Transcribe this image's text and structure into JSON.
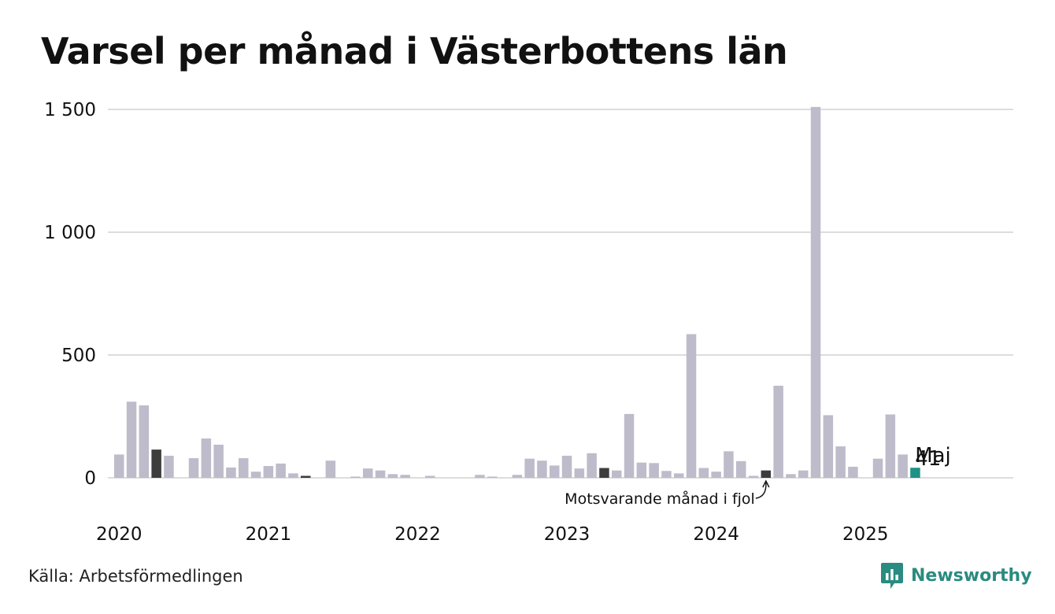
{
  "title": "Varsel per månad i Västerbottens län",
  "source": "Källa: Arbetsförmedlingen",
  "brand": "Newsworthy",
  "colors": {
    "bar": "#bebbca",
    "same_month_last_year": "#3d3d3d",
    "latest": "#1d9285",
    "grid": "#dddddd",
    "brand": "#2a8b80"
  },
  "chart_data": {
    "type": "bar",
    "title": "Varsel per månad i Västerbottens län",
    "ylim": [
      0,
      1500
    ],
    "yticks": [
      0,
      500,
      1000,
      1500
    ],
    "ytick_labels": [
      "0",
      "500",
      "1 000",
      "1 500"
    ],
    "xtick_labels": [
      "2020",
      "2021",
      "2022",
      "2023",
      "2024",
      "2025"
    ],
    "grid": true,
    "legend": "none",
    "start_month": "2020-01",
    "values": [
      95,
      310,
      295,
      115,
      90,
      0,
      80,
      160,
      135,
      42,
      80,
      25,
      48,
      58,
      18,
      8,
      0,
      70,
      0,
      5,
      38,
      30,
      15,
      12,
      0,
      8,
      0,
      0,
      0,
      12,
      5,
      0,
      12,
      78,
      70,
      50,
      90,
      38,
      100,
      40,
      30,
      260,
      62,
      60,
      28,
      18,
      585,
      40,
      25,
      108,
      68,
      8,
      30,
      375,
      15,
      30,
      1510,
      255,
      128,
      45,
      0,
      78,
      258,
      95,
      41
    ],
    "highlight_dark": [
      3,
      15,
      39,
      52
    ],
    "latest_index": 64,
    "annotations": {
      "latest_month": "Maj",
      "latest_value": "41",
      "last_year": "Motsvarande månad i fjol"
    }
  }
}
